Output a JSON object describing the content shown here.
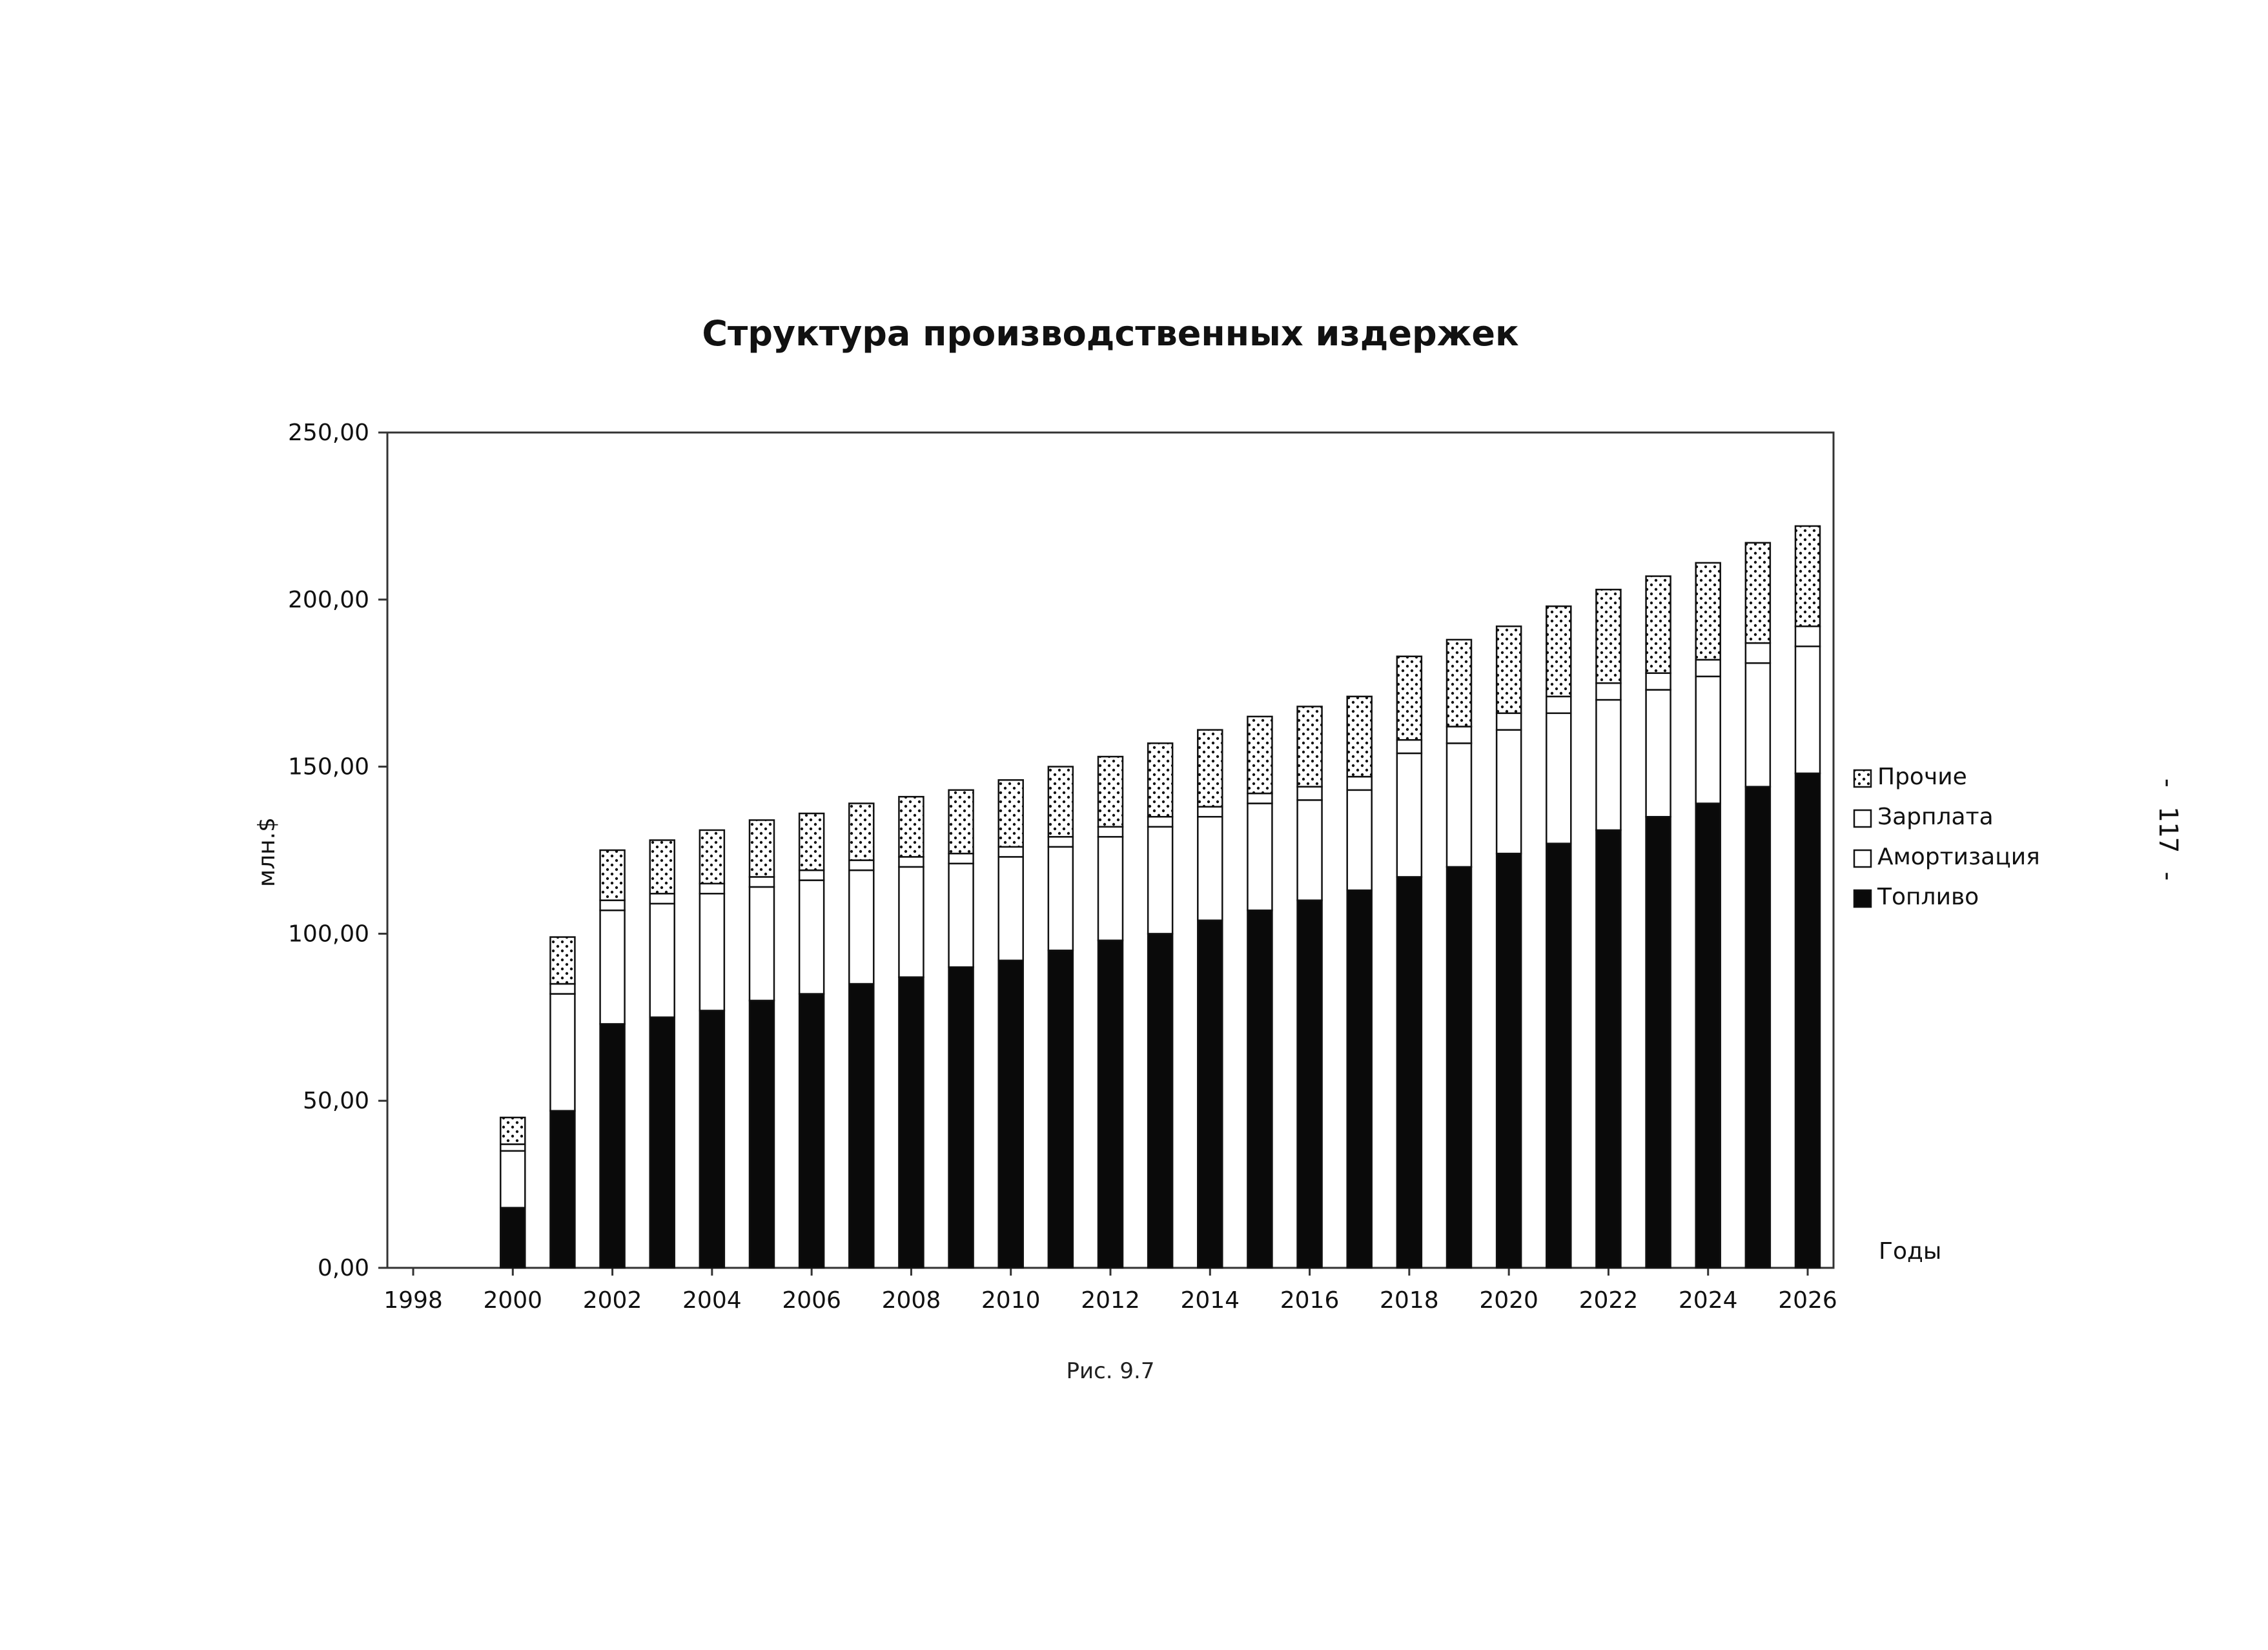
{
  "chart_data": {
    "type": "bar",
    "stacked": true,
    "title": "Структура производственных издержек",
    "ylabel": "млн.$",
    "xlabel": "Годы",
    "ylim": [
      0,
      250
    ],
    "y_ticks": [
      "0,00",
      "50,00",
      "100,00",
      "150,00",
      "200,00",
      "250,00"
    ],
    "y_tick_values": [
      0,
      50,
      100,
      150,
      200,
      250
    ],
    "x_ticks": [
      "1998",
      "2000",
      "2002",
      "2004",
      "2006",
      "2008",
      "2010",
      "2012",
      "2014",
      "2016",
      "2018",
      "2020",
      "2022",
      "2024",
      "2026"
    ],
    "categories": [
      1998,
      1999,
      2000,
      2001,
      2002,
      2003,
      2004,
      2005,
      2006,
      2007,
      2008,
      2009,
      2010,
      2011,
      2012,
      2013,
      2014,
      2015,
      2016,
      2017,
      2018,
      2019,
      2020,
      2021,
      2022,
      2023,
      2024,
      2025,
      2026
    ],
    "legend_position": "right",
    "grid": false,
    "series": [
      {
        "name": "Топливо",
        "pattern": "solid-black",
        "values": [
          0,
          0,
          18,
          47,
          73,
          75,
          77,
          80,
          82,
          85,
          87,
          90,
          92,
          95,
          98,
          100,
          104,
          107,
          110,
          113,
          117,
          120,
          124,
          127,
          131,
          135,
          139,
          144,
          148
        ]
      },
      {
        "name": "Амортизация",
        "pattern": "white",
        "values": [
          0,
          0,
          17,
          35,
          34,
          34,
          35,
          34,
          34,
          34,
          33,
          31,
          31,
          31,
          31,
          32,
          31,
          32,
          30,
          30,
          37,
          37,
          37,
          39,
          39,
          38,
          38,
          37,
          38
        ]
      },
      {
        "name": "Зарплата",
        "pattern": "white",
        "values": [
          0,
          0,
          2,
          3,
          3,
          3,
          3,
          3,
          3,
          3,
          3,
          3,
          3,
          3,
          3,
          3,
          3,
          3,
          4,
          4,
          4,
          5,
          5,
          5,
          5,
          5,
          5,
          6,
          6
        ]
      },
      {
        "name": "Прочие",
        "pattern": "dotted",
        "values": [
          0,
          0,
          8,
          14,
          15,
          16,
          16,
          17,
          17,
          17,
          18,
          19,
          20,
          21,
          21,
          22,
          23,
          23,
          24,
          24,
          25,
          26,
          26,
          27,
          28,
          29,
          29,
          30,
          30
        ]
      }
    ],
    "legend_order": [
      "Прочие",
      "Зарплата",
      "Амортизация",
      "Топливо"
    ]
  },
  "caption": "Рис. 9.7",
  "page_number": "- 117 -"
}
